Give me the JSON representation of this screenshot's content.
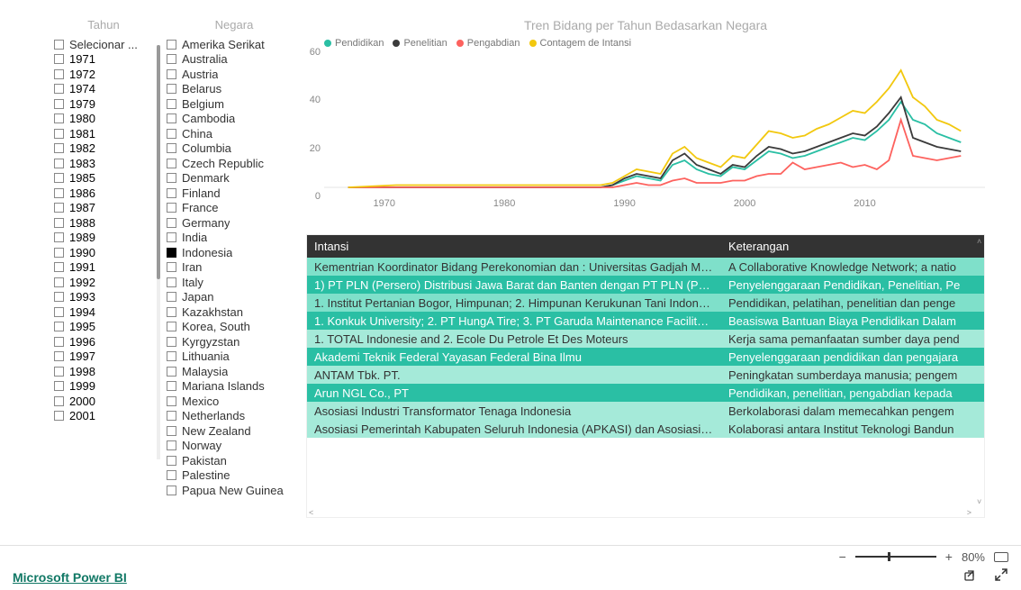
{
  "slicers": {
    "tahun": {
      "title": "Tahun",
      "items": [
        "Selecionar ...",
        "1971",
        "1972",
        "1974",
        "1979",
        "1980",
        "1981",
        "1982",
        "1983",
        "1985",
        "1986",
        "1987",
        "1988",
        "1989",
        "1990",
        "1991",
        "1992",
        "1993",
        "1994",
        "1995",
        "1996",
        "1997",
        "1998",
        "1999",
        "2000",
        "2001"
      ],
      "checked": []
    },
    "negara": {
      "title": "Negara",
      "items": [
        "Amerika Serikat",
        "Australia",
        "Austria",
        "Belarus",
        "Belgium",
        "Cambodia",
        "China",
        "Columbia",
        "Czech Republic",
        "Denmark",
        "Finland",
        "France",
        "Germany",
        "India",
        "Indonesia",
        "Iran",
        "Italy",
        "Japan",
        "Kazakhstan",
        "Korea, South",
        "Kyrgyzstan",
        "Lithuania",
        "Malaysia",
        "Mariana Islands",
        "Mexico",
        "Netherlands",
        "New Zealand",
        "Norway",
        "Pakistan",
        "Palestine",
        "Papua New Guinea"
      ],
      "checked": [
        "Indonesia"
      ]
    }
  },
  "chart": {
    "title": "Tren Bidang per Tahun Bedasarkan Negara",
    "series": [
      {
        "name": "Pendidikan",
        "color": "#2abfa4"
      },
      {
        "name": "Penelitian",
        "color": "#3b3b3b"
      },
      {
        "name": "Pengabdian",
        "color": "#fd625e"
      },
      {
        "name": "Contagem de Intansi",
        "color": "#f2c80f"
      }
    ],
    "x": {
      "min": 1965,
      "max": 2020,
      "ticks": [
        1970,
        1980,
        1990,
        2000,
        2010
      ]
    },
    "y": {
      "min": 0,
      "max": 60,
      "ticks": [
        0,
        20,
        40,
        60
      ]
    },
    "grid_color": "#e6e6e6",
    "data": {
      "years": [
        1967,
        1971,
        1972,
        1974,
        1979,
        1980,
        1981,
        1982,
        1983,
        1985,
        1986,
        1987,
        1988,
        1989,
        1990,
        1991,
        1992,
        1993,
        1994,
        1995,
        1996,
        1997,
        1998,
        1999,
        2000,
        2001,
        2002,
        2003,
        2004,
        2005,
        2006,
        2007,
        2008,
        2009,
        2010,
        2011,
        2012,
        2013,
        2014,
        2015,
        2016,
        2017,
        2018
      ],
      "Pendidikan": [
        0,
        0,
        0,
        0,
        0,
        0,
        0,
        0,
        0,
        0,
        0,
        0,
        0,
        1,
        3,
        5,
        4,
        3,
        10,
        12,
        8,
        6,
        5,
        9,
        8,
        12,
        16,
        15,
        13,
        14,
        16,
        18,
        20,
        22,
        21,
        25,
        30,
        38,
        30,
        28,
        24,
        22,
        20
      ],
      "Penelitian": [
        0,
        0,
        0,
        0,
        0,
        0,
        0,
        0,
        0,
        0,
        0,
        0,
        0,
        1,
        4,
        6,
        5,
        4,
        12,
        15,
        10,
        8,
        6,
        10,
        9,
        14,
        18,
        17,
        15,
        16,
        18,
        20,
        22,
        24,
        23,
        27,
        33,
        40,
        22,
        20,
        18,
        17,
        16
      ],
      "Pengabdian": [
        0,
        0,
        0,
        0,
        0,
        0,
        0,
        0,
        0,
        0,
        0,
        0,
        0,
        0,
        1,
        2,
        1,
        1,
        3,
        4,
        2,
        2,
        2,
        3,
        3,
        5,
        6,
        6,
        11,
        8,
        9,
        10,
        11,
        9,
        10,
        8,
        12,
        30,
        14,
        13,
        12,
        13,
        14
      ],
      "Contagem de Intansi": [
        0,
        1,
        1,
        1,
        1,
        1,
        1,
        1,
        1,
        1,
        1,
        1,
        1,
        2,
        5,
        8,
        7,
        6,
        15,
        18,
        13,
        11,
        9,
        14,
        13,
        19,
        25,
        24,
        22,
        23,
        26,
        28,
        31,
        34,
        33,
        38,
        44,
        52,
        40,
        36,
        30,
        28,
        25
      ]
    }
  },
  "table": {
    "columns": [
      "Intansi",
      "Keterangan"
    ],
    "rows": [
      [
        " Kementrian Koordinator Bidang Perekonomian dan : Universitas Gadjah Mad...",
        "A Collaborative Knowledge Network; a natio"
      ],
      [
        "1) PT PLN (Persero) Distribusi Jawa Barat dan Banten dengan PT PLN (Persero...",
        "Penyelenggaraan Pendidikan, Penelitian, Pe"
      ],
      [
        "1. Institut Pertanian Bogor, Himpunan; 2. Himpunan Kerukunan Tani Indonesi...",
        "Pendidikan, pelatihan, penelitian dan penge"
      ],
      [
        "1. Konkuk University; 2. PT HungA Tire; 3. PT Garuda Maintenance Facility Aer...",
        "Beasiswa Bantuan Biaya Pendidikan Dalam "
      ],
      [
        "1. TOTAL Indonesie  and  2. Ecole Du Petrole Et Des Moteurs",
        "Kerja sama pemanfaatan sumber daya pend"
      ],
      [
        "Akademi Teknik Federal Yayasan Federal Bina Ilmu",
        "Penyelenggaraan pendidikan dan pengajara"
      ],
      [
        "ANTAM Tbk. PT.",
        "Peningkatan sumberdaya manusia; pengem"
      ],
      [
        "Arun NGL Co., PT",
        "Pendidikan, penelitian, pengabdian kepada "
      ],
      [
        "Asosiasi Industri Transformator Tenaga Indonesia",
        "Berkolaborasi dalam memecahkan pengem"
      ],
      [
        "Asosiasi Pemerintah Kabupaten Seluruh Indonesia (APKASI) dan Asosiasi Pem...",
        "Kolaborasi antara Institut Teknologi Bandun"
      ]
    ],
    "row_shade": [
      0,
      1,
      0,
      1,
      2,
      1,
      2,
      1,
      2,
      2
    ]
  },
  "footer": {
    "zoom_pct": "80%",
    "zoom_pos": 0.4,
    "brand": "Microsoft Power BI"
  }
}
